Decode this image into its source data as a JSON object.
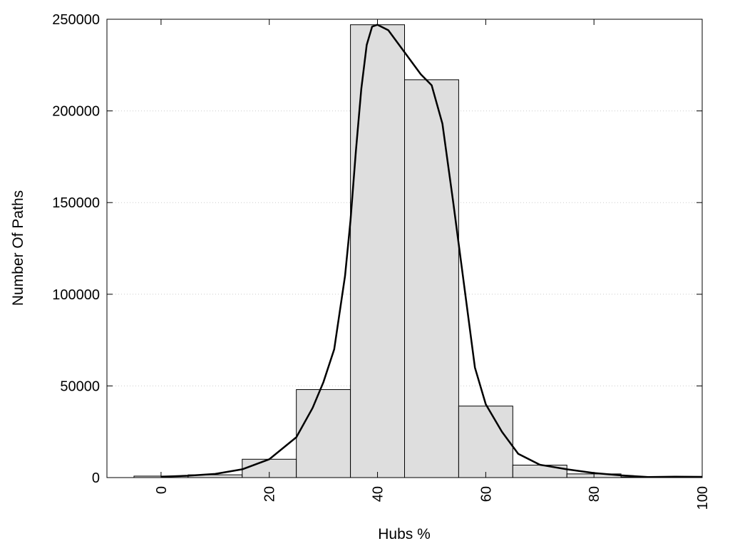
{
  "chart_data": {
    "type": "bar",
    "title": "",
    "xlabel": "Hubs %",
    "ylabel": "Number Of Paths",
    "grid": "horizontal-dotted",
    "xlim": [
      -10,
      100
    ],
    "ylim": [
      0,
      250000
    ],
    "bin_width": 10,
    "x_ticks": [
      0,
      20,
      40,
      60,
      80,
      100
    ],
    "x_tick_labels": [
      "0",
      "20",
      "40",
      "60",
      "80",
      "100"
    ],
    "y_ticks": [
      0,
      50000,
      100000,
      150000,
      200000,
      250000
    ],
    "y_tick_labels": [
      "0",
      "50000",
      "100000",
      "150000",
      "200000",
      "250000"
    ],
    "bars": [
      {
        "x": 0,
        "value": 800
      },
      {
        "x": 10,
        "value": 1500
      },
      {
        "x": 20,
        "value": 10000
      },
      {
        "x": 30,
        "value": 48000
      },
      {
        "x": 40,
        "value": 247000
      },
      {
        "x": 50,
        "value": 217000
      },
      {
        "x": 60,
        "value": 39000
      },
      {
        "x": 70,
        "value": 6800
      },
      {
        "x": 80,
        "value": 2000
      },
      {
        "x": 90,
        "value": 300
      }
    ],
    "fit_curve": [
      {
        "x": 0,
        "y": 500
      },
      {
        "x": 5,
        "y": 1000
      },
      {
        "x": 10,
        "y": 2000
      },
      {
        "x": 15,
        "y": 4500
      },
      {
        "x": 20,
        "y": 10000
      },
      {
        "x": 25,
        "y": 22000
      },
      {
        "x": 28,
        "y": 38000
      },
      {
        "x": 30,
        "y": 52000
      },
      {
        "x": 32,
        "y": 70000
      },
      {
        "x": 34,
        "y": 110000
      },
      {
        "x": 35,
        "y": 140000
      },
      {
        "x": 36,
        "y": 178000
      },
      {
        "x": 37,
        "y": 212000
      },
      {
        "x": 38,
        "y": 236000
      },
      {
        "x": 39,
        "y": 246000
      },
      {
        "x": 40,
        "y": 247000
      },
      {
        "x": 42,
        "y": 244000
      },
      {
        "x": 44,
        "y": 236000
      },
      {
        "x": 46,
        "y": 228000
      },
      {
        "x": 48,
        "y": 220000
      },
      {
        "x": 50,
        "y": 214000
      },
      {
        "x": 52,
        "y": 193000
      },
      {
        "x": 54,
        "y": 150000
      },
      {
        "x": 56,
        "y": 105000
      },
      {
        "x": 58,
        "y": 60000
      },
      {
        "x": 60,
        "y": 40000
      },
      {
        "x": 63,
        "y": 25000
      },
      {
        "x": 66,
        "y": 13000
      },
      {
        "x": 70,
        "y": 7000
      },
      {
        "x": 75,
        "y": 4500
      },
      {
        "x": 80,
        "y": 2500
      },
      {
        "x": 85,
        "y": 1200
      },
      {
        "x": 90,
        "y": 300
      },
      {
        "x": 95,
        "y": 500
      },
      {
        "x": 100,
        "y": 400
      }
    ],
    "colors": {
      "bar_fill": "#dedede",
      "bar_stroke": "#000000",
      "curve": "#000000",
      "grid": "#cccccc",
      "frame": "#000000"
    }
  }
}
